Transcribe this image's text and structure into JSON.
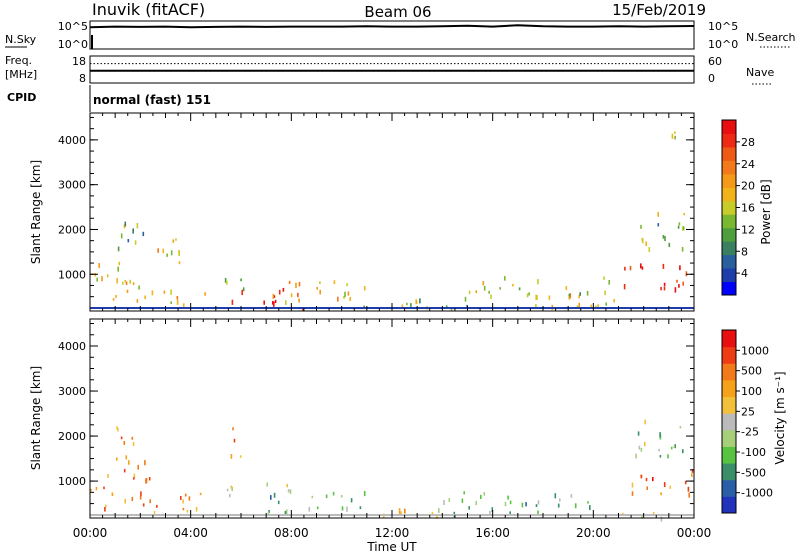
{
  "header": {
    "station": "Inuvik (fitACF)",
    "beam": "Beam 06",
    "date": "15/Feb/2019"
  },
  "chart_data": [
    {
      "type": "line",
      "left_label": "N.Sky",
      "right_label": "N.Search",
      "left_ticks": [
        "10^5",
        "10^0"
      ],
      "right_ticks": [
        "10^5",
        "10^0"
      ],
      "series": [
        {
          "values": [
            0.78,
            0.8,
            0.79,
            0.8,
            0.78,
            0.79,
            0.8,
            0.79,
            0.8,
            0.8,
            0.8,
            0.81,
            0.8,
            0.8,
            0.81,
            0.83,
            0.8,
            0.85,
            0.81,
            0.8,
            0.8,
            0.81,
            0.8,
            0.81,
            0.82
          ]
        }
      ]
    },
    {
      "type": "line",
      "left_label": "Freq.",
      "left_unit": "[MHz]",
      "right_label": "Nave",
      "left_ticks": [
        "18",
        "8"
      ],
      "right_ticks": [
        "60",
        "0"
      ],
      "series": [
        {
          "style": "dotted",
          "values": [
            0.72,
            0.72,
            0.72,
            0.72,
            0.72,
            0.72,
            0.72,
            0.72,
            0.72,
            0.72,
            0.72,
            0.72,
            0.72,
            0.72,
            0.72,
            0.72,
            0.72,
            0.72,
            0.72,
            0.72,
            0.72,
            0.72,
            0.72,
            0.72,
            0.72
          ]
        },
        {
          "style": "solid",
          "values": [
            0.45,
            0.45,
            0.45,
            0.45,
            0.45,
            0.45,
            0.45,
            0.45,
            0.45,
            0.45,
            0.45,
            0.45,
            0.45,
            0.45,
            0.45,
            0.45,
            0.45,
            0.45,
            0.45,
            0.45,
            0.45,
            0.45,
            0.45,
            0.45,
            0.45
          ]
        }
      ]
    },
    {
      "type": "heatmap",
      "title": "",
      "cpid_label": "CPID",
      "cpid_value": "normal (fast) 151",
      "ylabel": "Slant Range [km]",
      "yticks": [
        "1000",
        "2000",
        "3000",
        "4000"
      ],
      "ytick_values": [
        1000,
        2000,
        3000,
        4000
      ],
      "ylim": [
        180,
        4600
      ],
      "xlim": [
        0,
        24
      ],
      "colorbar": {
        "label": "Power [dB]",
        "ticks": [
          "4",
          "8",
          "12",
          "16",
          "20",
          "24",
          "28"
        ],
        "colors": [
          "#0000ff",
          "#1d3dab",
          "#2a5f9e",
          "#3a8060",
          "#4f9e3e",
          "#7ab832",
          "#c7cc2b",
          "#f2b21a",
          "#f59a18",
          "#f27a1a",
          "#ee5a16",
          "#ee2a14",
          "#e90f10"
        ]
      },
      "regions": [
        {
          "x": [
            0.0,
            1.6
          ],
          "y": [
            700,
            1400
          ],
          "level": 0.5
        },
        {
          "x": [
            0.2,
            3.0
          ],
          "y": [
            400,
            900
          ],
          "level": 0.6
        },
        {
          "x": [
            1.0,
            2.2
          ],
          "y": [
            1400,
            2300
          ],
          "level": 0.4
        },
        {
          "x": [
            2.5,
            4.0
          ],
          "y": [
            1200,
            1900
          ],
          "level": 0.55
        },
        {
          "x": [
            3.0,
            5.0
          ],
          "y": [
            350,
            700
          ],
          "level": 0.55
        },
        {
          "x": [
            5.0,
            6.4
          ],
          "y": [
            700,
            1000
          ],
          "level": 0.45
        },
        {
          "x": [
            5.5,
            8.5
          ],
          "y": [
            250,
            700
          ],
          "level": 0.95
        },
        {
          "x": [
            7.0,
            11.0
          ],
          "y": [
            400,
            900
          ],
          "level": 0.6
        },
        {
          "x": [
            10.0,
            13.0
          ],
          "y": [
            230,
            500
          ],
          "level": 0.5
        },
        {
          "x": [
            13.0,
            16.0
          ],
          "y": [
            250,
            500
          ],
          "level": 0.3
        },
        {
          "x": [
            15.0,
            18.0
          ],
          "y": [
            500,
            1000
          ],
          "level": 0.55
        },
        {
          "x": [
            17.0,
            19.5
          ],
          "y": [
            300,
            800
          ],
          "level": 0.6
        },
        {
          "x": [
            19.0,
            21.0
          ],
          "y": [
            300,
            1000
          ],
          "level": 0.4
        },
        {
          "x": [
            21.0,
            24.0
          ],
          "y": [
            700,
            1300
          ],
          "level": 0.93
        },
        {
          "x": [
            21.5,
            23.6
          ],
          "y": [
            1500,
            2400
          ],
          "level": 0.4
        },
        {
          "x": [
            23.0,
            23.8
          ],
          "y": [
            3800,
            4300
          ],
          "level": 0.4
        }
      ]
    },
    {
      "type": "heatmap",
      "title": "",
      "ylabel": "Slant Range [km]",
      "xlabel": "Time UT",
      "xticks": [
        "00:00",
        "04:00",
        "08:00",
        "12:00",
        "16:00",
        "20:00",
        "00:00"
      ],
      "xtick_values": [
        0,
        4,
        8,
        12,
        16,
        20,
        24
      ],
      "yticks": [
        "1000",
        "2000",
        "3000",
        "4000"
      ],
      "ytick_values": [
        1000,
        2000,
        3000,
        4000
      ],
      "ylim": [
        180,
        4600
      ],
      "xlim": [
        0,
        24
      ],
      "colorbar": {
        "label": "Velocity [m s⁻¹]",
        "ticks": [
          "1000",
          "500",
          "100",
          "25",
          "-25",
          "-100",
          "-500",
          "-1000"
        ],
        "colors": [
          "#2233bb",
          "#2a5fa8",
          "#3a8f6a",
          "#58c241",
          "#a7cf7a",
          "#bbbbbb",
          "#f2c03a",
          "#f5a21a",
          "#f27a1a",
          "#ee3c14",
          "#e90f10"
        ]
      },
      "regions": [
        {
          "x": [
            0.0,
            2.5
          ],
          "y": [
            400,
            1300
          ],
          "level": 0.72
        },
        {
          "x": [
            1.0,
            2.3
          ],
          "y": [
            1300,
            2300
          ],
          "level": 0.72
        },
        {
          "x": [
            2.5,
            5.0
          ],
          "y": [
            300,
            800
          ],
          "level": 0.72
        },
        {
          "x": [
            5.5,
            6.0
          ],
          "y": [
            1300,
            2300
          ],
          "level": 0.78
        },
        {
          "x": [
            5.0,
            8.0
          ],
          "y": [
            700,
            1000
          ],
          "level": 0.48
        },
        {
          "x": [
            7.0,
            11.0
          ],
          "y": [
            300,
            800
          ],
          "level": 0.3
        },
        {
          "x": [
            10.0,
            14.0
          ],
          "y": [
            230,
            500
          ],
          "level": 0.6
        },
        {
          "x": [
            14.0,
            18.0
          ],
          "y": [
            300,
            800
          ],
          "level": 0.33
        },
        {
          "x": [
            17.5,
            20.0
          ],
          "y": [
            300,
            800
          ],
          "level": 0.4
        },
        {
          "x": [
            20.0,
            24.0
          ],
          "y": [
            200,
            320
          ],
          "level": 0.5
        },
        {
          "x": [
            21.0,
            24.0
          ],
          "y": [
            700,
            1300
          ],
          "level": 0.75
        },
        {
          "x": [
            21.5,
            23.6
          ],
          "y": [
            1500,
            2400
          ],
          "level": 0.4
        }
      ]
    }
  ]
}
